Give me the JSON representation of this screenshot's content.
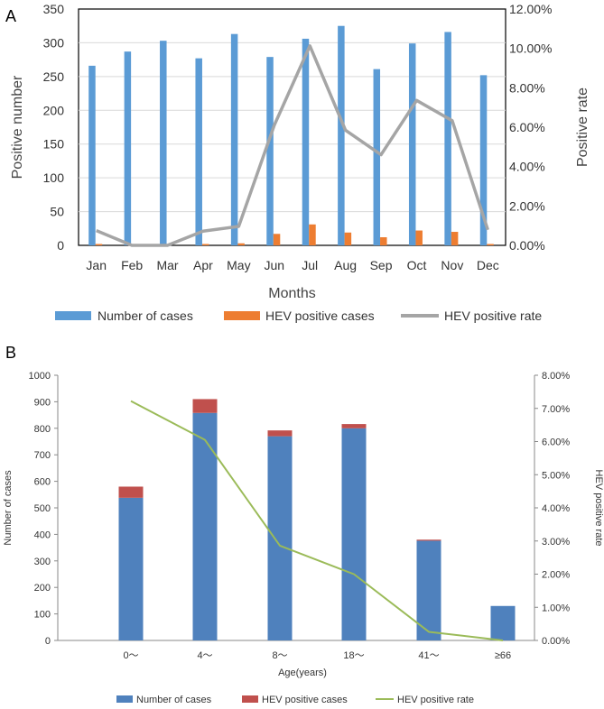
{
  "panel_a": {
    "label": "A",
    "chart_data": {
      "type": "bar+line",
      "categories": [
        "Jan",
        "Feb",
        "Mar",
        "Apr",
        "May",
        "Jun",
        "Jul",
        "Aug",
        "Sep",
        "Oct",
        "Nov",
        "Dec"
      ],
      "series": [
        {
          "name": "Number of cases",
          "type": "bar",
          "axis": "left",
          "color": "#5b9bd5",
          "values": [
            266,
            287,
            303,
            277,
            313,
            279,
            306,
            325,
            261,
            299,
            316,
            252
          ]
        },
        {
          "name": "HEV positive cases",
          "type": "bar",
          "axis": "left",
          "color": "#ed7d31",
          "values": [
            2,
            0,
            0,
            2,
            3,
            17,
            31,
            19,
            12,
            22,
            20,
            2
          ]
        },
        {
          "name": "HEV positive rate",
          "type": "line",
          "axis": "right",
          "color": "#a5a5a5",
          "values": [
            0.0075,
            0.0,
            0.0,
            0.0072,
            0.0096,
            0.061,
            0.1013,
            0.0585,
            0.046,
            0.0736,
            0.0633,
            0.0079
          ]
        }
      ],
      "xlabel": "Months",
      "ylabel": "Positive number",
      "y2label": "Positive rate",
      "ylim": [
        0,
        350
      ],
      "y2lim": [
        0,
        0.12
      ],
      "yticks": [
        "0",
        "50",
        "100",
        "150",
        "200",
        "250",
        "300",
        "350"
      ],
      "y2ticks": [
        "0.00%",
        "2.00%",
        "4.00%",
        "6.00%",
        "8.00%",
        "10.00%",
        "12.00%"
      ],
      "legend": [
        "Number of cases",
        "HEV positive cases",
        "HEV positive rate"
      ],
      "legend_position": "bottom"
    }
  },
  "panel_b": {
    "label": "B",
    "chart_data": {
      "type": "stacked-bar+line",
      "categories": [
        "0～",
        "4～",
        "8～",
        "18～",
        "41～",
        "≥66"
      ],
      "series": [
        {
          "name": "Number of cases",
          "type": "bar",
          "axis": "left",
          "color": "#4f81bd",
          "values": [
            538,
            858,
            770,
            800,
            376,
            130
          ]
        },
        {
          "name": "HEV positive cases",
          "type": "bar-stacked",
          "axis": "left",
          "color": "#c0504d",
          "values": [
            42,
            52,
            22,
            16,
            4,
            0
          ]
        },
        {
          "name": "HEV positive rate",
          "type": "line",
          "axis": "right",
          "color": "#9bbb59",
          "values": [
            0.0722,
            0.0605,
            0.0286,
            0.02,
            0.0026,
            0.0
          ]
        }
      ],
      "xlabel": "Age(years)",
      "ylabel": "Number of cases",
      "y2label": "HEV positive rate",
      "ylim": [
        0,
        1000
      ],
      "y2lim": [
        0,
        0.08
      ],
      "yticks": [
        "0",
        "100",
        "200",
        "300",
        "400",
        "500",
        "600",
        "700",
        "800",
        "900",
        "1000"
      ],
      "y2ticks": [
        "0.00%",
        "1.00%",
        "2.00%",
        "3.00%",
        "4.00%",
        "5.00%",
        "6.00%",
        "7.00%",
        "8.00%"
      ],
      "legend": [
        "Number of cases",
        "HEV positive cases",
        "HEV positive rate"
      ],
      "legend_position": "bottom"
    }
  }
}
